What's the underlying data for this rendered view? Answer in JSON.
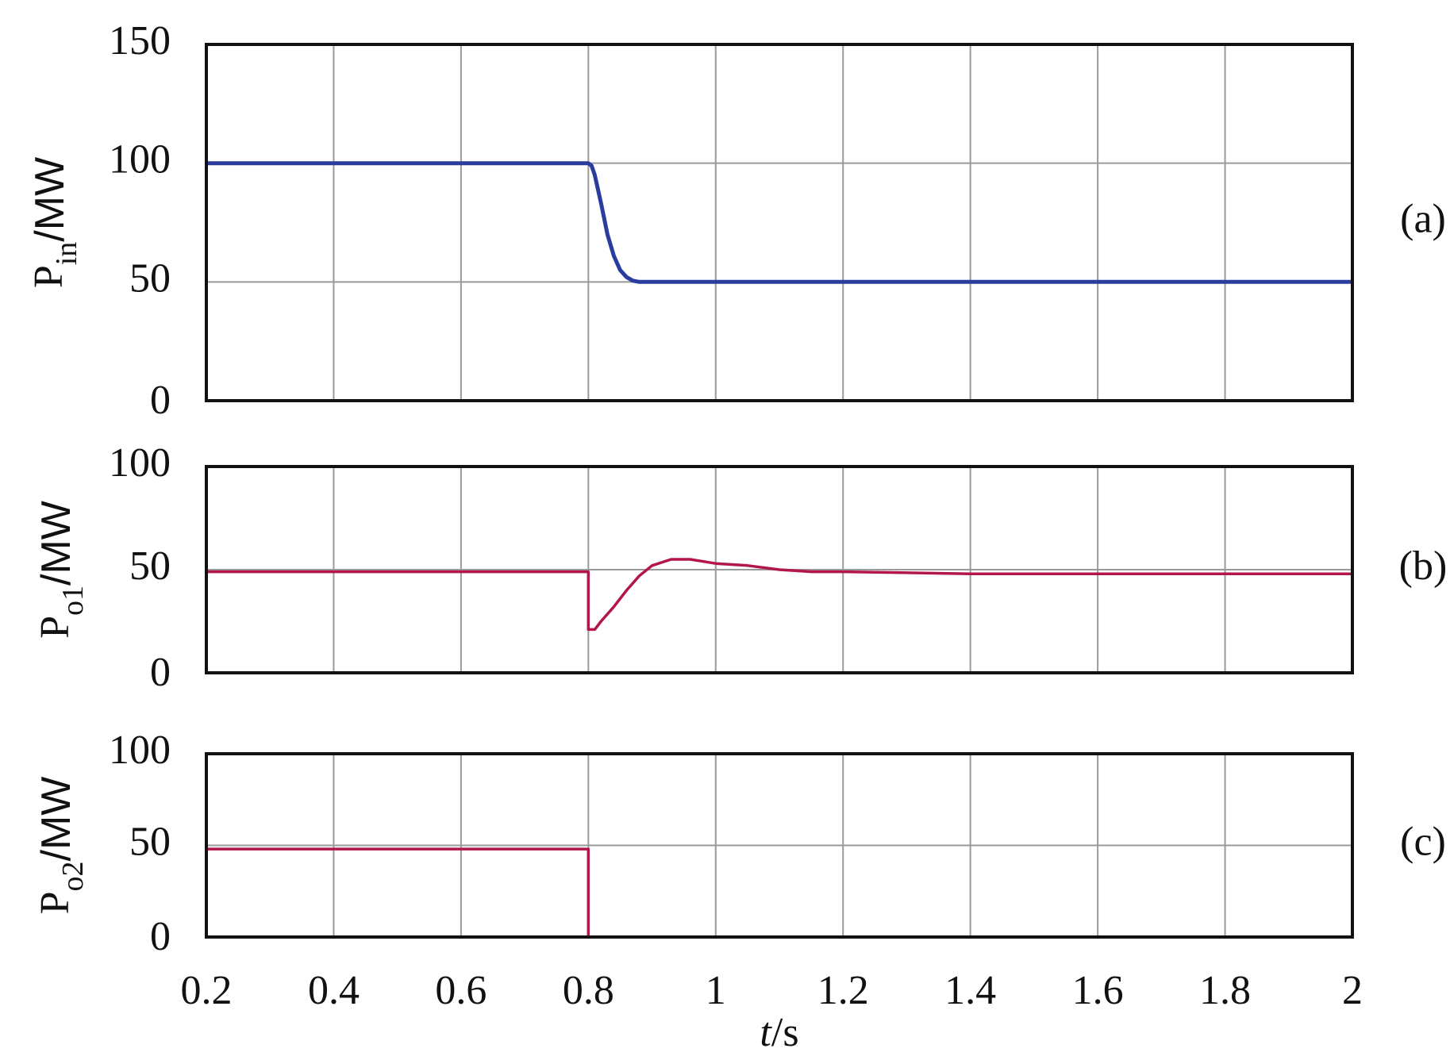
{
  "chart_data": [
    {
      "type": "line",
      "ylabel": [
        "P",
        "in",
        "/MW"
      ],
      "annotation": "(a)",
      "color": "#2a3c9e",
      "xlim": [
        0.2,
        2
      ],
      "xticks": [
        0.2,
        0.4,
        0.6,
        0.8,
        1,
        1.2,
        1.4,
        1.6,
        1.8,
        2
      ],
      "ylim": [
        0,
        150
      ],
      "yticks": [
        0,
        50,
        100,
        150
      ],
      "grid": true,
      "x": [
        0.2,
        0.4,
        0.6,
        0.8,
        0.805,
        0.81,
        0.82,
        0.83,
        0.84,
        0.85,
        0.86,
        0.87,
        0.88,
        0.9,
        1.0,
        1.2,
        1.4,
        1.6,
        1.8,
        2
      ],
      "values": [
        100,
        100,
        100,
        100,
        99,
        95,
        83,
        70,
        61,
        55,
        52,
        50.5,
        50,
        50,
        50,
        50,
        50,
        50,
        50,
        50
      ]
    },
    {
      "type": "line",
      "ylabel": [
        "P",
        "o1",
        "/MW"
      ],
      "annotation": "(b)",
      "color": "#b3174a",
      "xlim": [
        0.2,
        2
      ],
      "xticks": [
        0.2,
        0.4,
        0.6,
        0.8,
        1,
        1.2,
        1.4,
        1.6,
        1.8,
        2
      ],
      "ylim": [
        0,
        100
      ],
      "yticks": [
        0,
        50,
        100
      ],
      "grid": true,
      "x": [
        0.2,
        0.3,
        0.4,
        0.5,
        0.6,
        0.7,
        0.8,
        0.8,
        0.81,
        0.82,
        0.84,
        0.86,
        0.88,
        0.9,
        0.93,
        0.96,
        1.0,
        1.05,
        1.1,
        1.15,
        1.2,
        1.4,
        1.6,
        1.8,
        2
      ],
      "values": [
        49,
        49,
        49,
        49,
        49,
        49,
        49,
        21,
        21,
        25,
        32,
        40,
        47,
        52,
        55,
        55,
        53,
        52,
        50,
        49,
        49,
        48,
        48,
        48,
        48
      ]
    },
    {
      "type": "line",
      "ylabel": [
        "P",
        "o2",
        "/MW"
      ],
      "annotation": "(c)",
      "color": "#b3174a",
      "xlim": [
        0.2,
        2
      ],
      "xticks": [
        0.2,
        0.4,
        0.6,
        0.8,
        1,
        1.2,
        1.4,
        1.6,
        1.8,
        2
      ],
      "xtick_labels": true,
      "xlabel": [
        "t",
        "/s"
      ],
      "ylim": [
        0,
        100
      ],
      "yticks": [
        0,
        50,
        100
      ],
      "grid": true,
      "x": [
        0.2,
        0.4,
        0.6,
        0.8,
        0.8,
        1.0,
        1.5,
        2
      ],
      "values": [
        48,
        48,
        48,
        48,
        0,
        0,
        0,
        0
      ]
    }
  ]
}
